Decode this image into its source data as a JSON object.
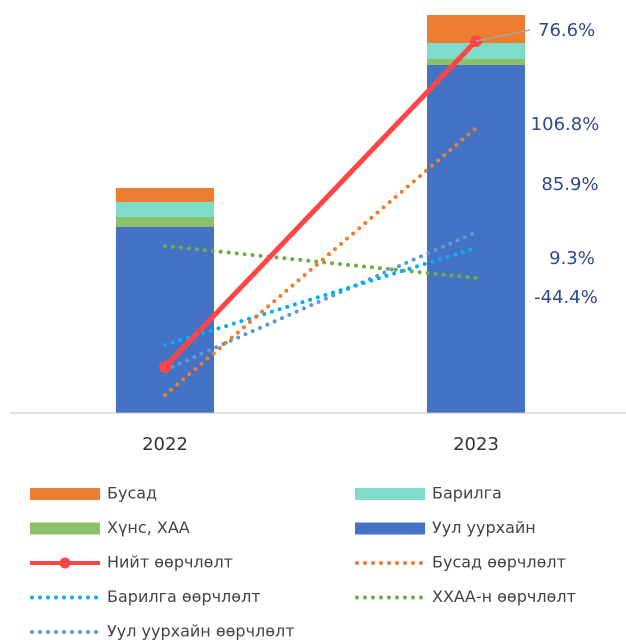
{
  "chart_data": {
    "type": "bar",
    "stacked": true,
    "categories": [
      "2022",
      "2023"
    ],
    "ylim": [
      0,
      398
    ],
    "y2lim": [
      0,
      398
    ],
    "series": [
      {
        "name": "Бусад",
        "type": "bar",
        "color": "#ed7d31",
        "values": [
          14,
          28
        ]
      },
      {
        "name": "Барилга",
        "type": "bar",
        "color": "#7fdcc8",
        "values": [
          15,
          16
        ]
      },
      {
        "name": "Хүнс, ХАА",
        "type": "bar",
        "color": "#8cc16b",
        "values": [
          10,
          6
        ]
      },
      {
        "name": "Уул уурхайн",
        "type": "bar",
        "color": "#4472c4",
        "values": [
          186,
          348
        ]
      },
      {
        "name": "Нийт өөрчлөлт",
        "type": "line",
        "axis": "y2",
        "style": "solid",
        "markers": true,
        "color": "#ff4545",
        "values": [
          46,
          372
        ]
      },
      {
        "name": "Бусад өөрчлөлт",
        "type": "line",
        "axis": "y2",
        "style": "dotted",
        "color": "#ed7d31",
        "values": [
          18,
          285
        ]
      },
      {
        "name": "Барилга өөрчлөлт",
        "type": "line",
        "axis": "y2",
        "style": "dotted",
        "color": "#00b0f0",
        "values": [
          68,
          165
        ]
      },
      {
        "name": "ХХАА-н өөрчлөлт",
        "type": "line",
        "axis": "y2",
        "style": "dotted",
        "color": "#70ad47",
        "values": [
          167,
          135
        ]
      },
      {
        "name": "Уул уурхайн өөрчлөлт",
        "type": "line",
        "axis": "y2",
        "style": "dotted",
        "color": "#5b9bd5",
        "values": [
          43,
          181
        ]
      }
    ],
    "annotations": [
      "76.6%",
      "106.8%",
      "85.9%",
      "9.3%",
      "-44.4%"
    ],
    "legend": "bottom"
  }
}
